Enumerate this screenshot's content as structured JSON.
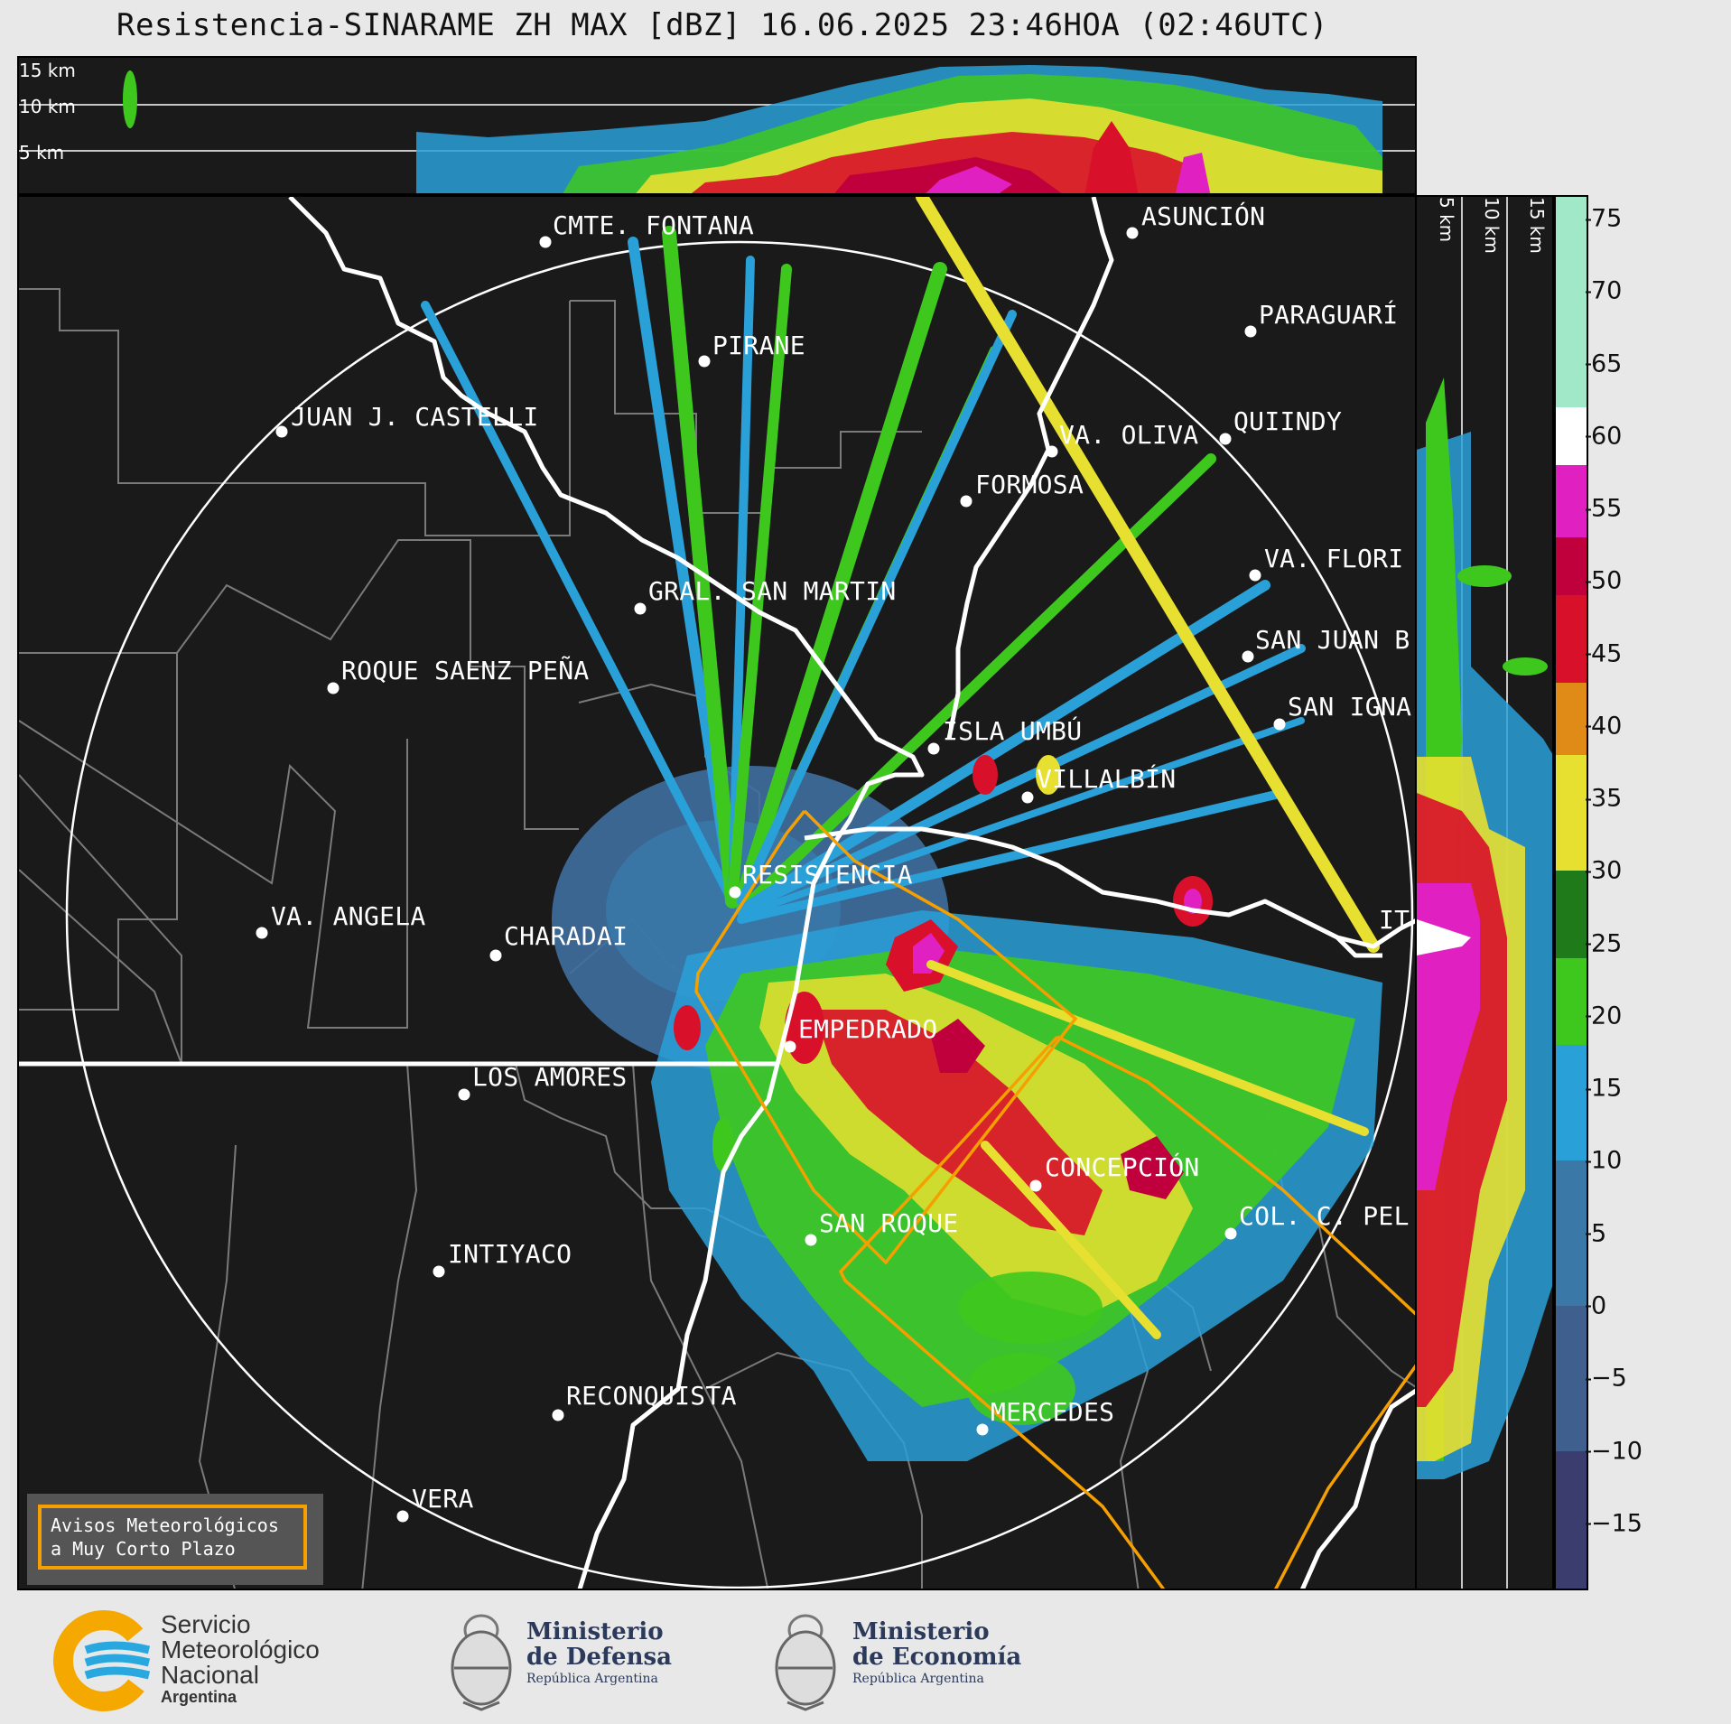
{
  "title": "Resistencia-SINARAME ZH MAX [dBZ] 16.06.2025 23:46HOA (02:46UTC)",
  "height_labels_top": [
    "15 km",
    "10 km",
    "5 km"
  ],
  "height_labels_side": [
    "5 km",
    "10 km",
    "15 km"
  ],
  "colorbar": {
    "ticks": [
      "75",
      "70",
      "65",
      "60",
      "55",
      "50",
      "45",
      "40",
      "35",
      "30",
      "25",
      "20",
      "15",
      "10",
      "5",
      "0",
      "−5",
      "−10",
      "−15"
    ],
    "tick_values": [
      75,
      70,
      65,
      60,
      55,
      50,
      45,
      40,
      35,
      30,
      25,
      20,
      15,
      10,
      5,
      0,
      -5,
      -10,
      -15
    ],
    "range": [
      -19.5,
      76.5
    ],
    "bands": [
      {
        "from": -19.5,
        "to": -10,
        "color": "#3b3d6e"
      },
      {
        "from": -10,
        "to": 0,
        "color": "#3f5f8f"
      },
      {
        "from": 0,
        "to": 10,
        "color": "#3a78a8"
      },
      {
        "from": 10,
        "to": 18,
        "color": "#2aa0d8"
      },
      {
        "from": 18,
        "to": 24,
        "color": "#3ec81e"
      },
      {
        "from": 24,
        "to": 30,
        "color": "#1f7a1a"
      },
      {
        "from": 30,
        "to": 38,
        "color": "#e8e030"
      },
      {
        "from": 38,
        "to": 43,
        "color": "#e08a18"
      },
      {
        "from": 43,
        "to": 49,
        "color": "#d8102a"
      },
      {
        "from": 49,
        "to": 53,
        "color": "#c0003c"
      },
      {
        "from": 53,
        "to": 58,
        "color": "#e020c0"
      },
      {
        "from": 58,
        "to": 62,
        "color": "#ffffff"
      },
      {
        "from": 62,
        "to": 76.5,
        "color": "#a0e8c8"
      }
    ]
  },
  "cities": [
    {
      "name": "CMTE. FONTANA"
    },
    {
      "name": "ASUNCIÓN"
    },
    {
      "name": "PARAGUARÍ"
    },
    {
      "name": "PIRANE"
    },
    {
      "name": "JUAN J. CASTELLI"
    },
    {
      "name": "VA. OLIVA"
    },
    {
      "name": "QUIINDY"
    },
    {
      "name": "FORMOSA"
    },
    {
      "name": "VA. FLORI"
    },
    {
      "name": "GRAL. SAN MARTIN"
    },
    {
      "name": "SAN JUAN B"
    },
    {
      "name": "ROQUE SAENZ PEÑA"
    },
    {
      "name": "SAN IGNA"
    },
    {
      "name": "ISLA UMBÚ"
    },
    {
      "name": "VILLALBÍN"
    },
    {
      "name": "RESISTENCIA"
    },
    {
      "name": "IT"
    },
    {
      "name": "VA. ANGELA"
    },
    {
      "name": "CHARADAI"
    },
    {
      "name": "EMPEDRADO"
    },
    {
      "name": "LOS AMORES"
    },
    {
      "name": "CONCEPCIÓN"
    },
    {
      "name": "SAN ROQUE"
    },
    {
      "name": "COL. C. PEL"
    },
    {
      "name": "INTIYACO"
    },
    {
      "name": "RECONQUISTA"
    },
    {
      "name": "MERCEDES"
    },
    {
      "name": "VERA"
    }
  ],
  "warning_box": {
    "line1": "Avisos Meteorológicos",
    "line2": "a Muy Corto Plazo",
    "color": "#f5a000"
  },
  "logos": {
    "smn": {
      "line1": "Servicio",
      "line2": "Meteorológico",
      "line3": "Nacional",
      "line4": "Argentina"
    },
    "defensa": {
      "line1": "Ministerio",
      "line2": "de Defensa",
      "line3": "República Argentina"
    },
    "economia": {
      "line1": "Ministerio",
      "line2": "de Economía",
      "line3": "República Argentina"
    }
  }
}
